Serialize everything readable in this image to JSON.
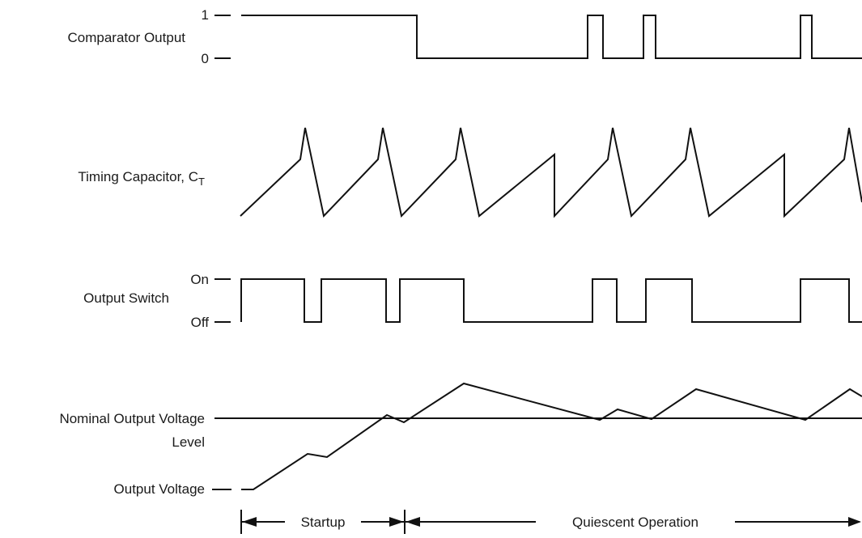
{
  "signals": {
    "comparator": {
      "label": "Comparator Output",
      "high": "1",
      "low": "0"
    },
    "timing": {
      "label_main": "Timing Capacitor, C",
      "label_sub": "T"
    },
    "switch": {
      "label": "Output Switch",
      "high": "On",
      "low": "Off"
    },
    "voltage": {
      "nominal_line1": "Nominal Output Voltage",
      "nominal_line2": "Level",
      "output_label": "Output Voltage"
    }
  },
  "phases": {
    "startup": "Startup",
    "quiescent": "Quiescent Operation"
  },
  "colors": {
    "ink": "#111111",
    "background": "#ffffff"
  }
}
